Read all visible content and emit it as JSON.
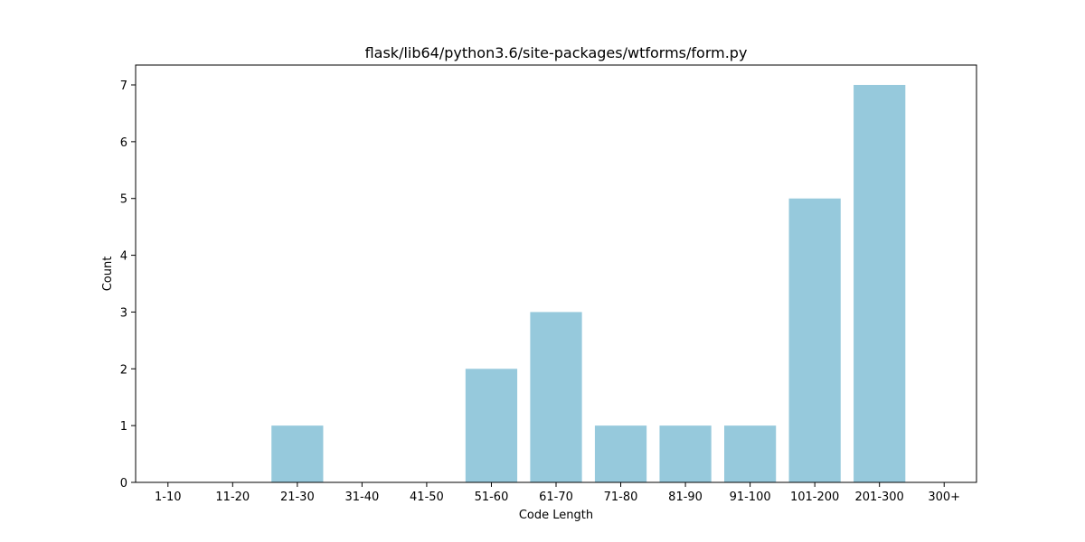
{
  "chart_data": {
    "type": "bar",
    "title": "flask/lib64/python3.6/site-packages/wtforms/form.py",
    "xlabel": "Code Length",
    "ylabel": "Count",
    "categories": [
      "1-10",
      "11-20",
      "21-30",
      "31-40",
      "41-50",
      "51-60",
      "61-70",
      "71-80",
      "81-90",
      "91-100",
      "101-200",
      "201-300",
      "300+"
    ],
    "values": [
      0,
      0,
      1,
      0,
      0,
      2,
      3,
      1,
      1,
      1,
      5,
      7,
      0
    ],
    "ylim": [
      0,
      7.35
    ],
    "yticks": [
      0,
      1,
      2,
      3,
      4,
      5,
      6,
      7
    ],
    "bar_color": "#96c9dc",
    "grid": false
  }
}
